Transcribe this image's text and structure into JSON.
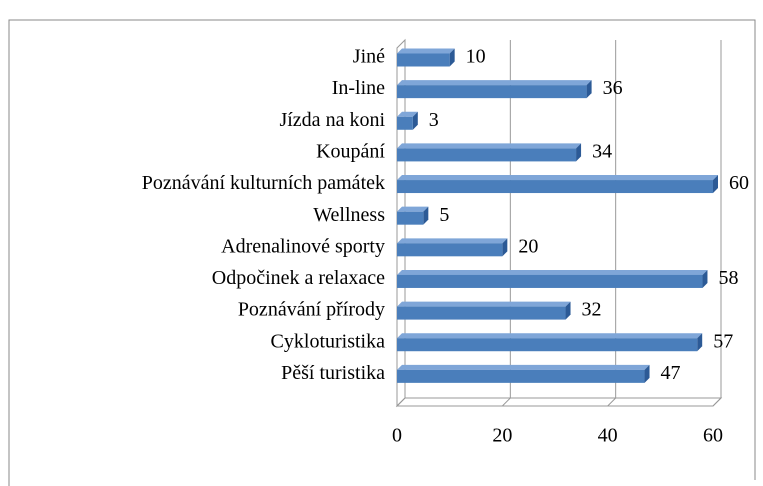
{
  "chart_data": {
    "type": "bar",
    "orientation": "horizontal",
    "categories": [
      "Jiné",
      "In-line",
      "Jízda na koni",
      "Koupání",
      "Poznávání kulturních památek",
      "Wellness",
      "Adrenalinové sporty",
      "Odpočinek a relaxace",
      "Poznávání přírody",
      "Cykloturistika",
      "Pěší turistika"
    ],
    "values": [
      10,
      36,
      3,
      34,
      60,
      5,
      20,
      58,
      32,
      57,
      47
    ],
    "color": "#4a7ebb",
    "xlim": [
      0,
      60
    ],
    "xticks": [
      0,
      20,
      40,
      60
    ],
    "grid": true
  }
}
